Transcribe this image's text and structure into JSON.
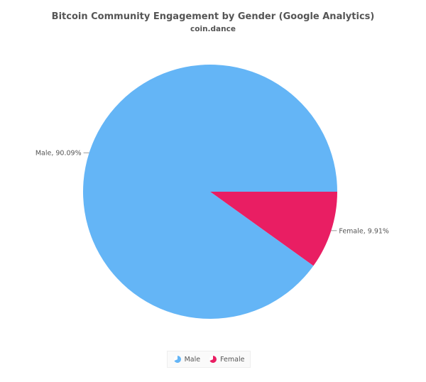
{
  "chart_data": {
    "type": "pie",
    "title": "Bitcoin Community Engagement by Gender (Google Analytics)",
    "subtitle": "coin.dance",
    "slices": [
      {
        "name": "Male",
        "value": 90.09,
        "label": "Male, 90.09%",
        "color": "#64b5f6"
      },
      {
        "name": "Female",
        "value": 9.91,
        "label": "Female, 9.91%",
        "color": "#e91e63"
      }
    ],
    "legend": {
      "position": "bottom-center",
      "items": [
        {
          "name": "Male",
          "color": "#64b5f6",
          "icon": "pie-icon"
        },
        {
          "name": "Female",
          "color": "#e91e63",
          "icon": "pie-icon"
        }
      ]
    }
  }
}
